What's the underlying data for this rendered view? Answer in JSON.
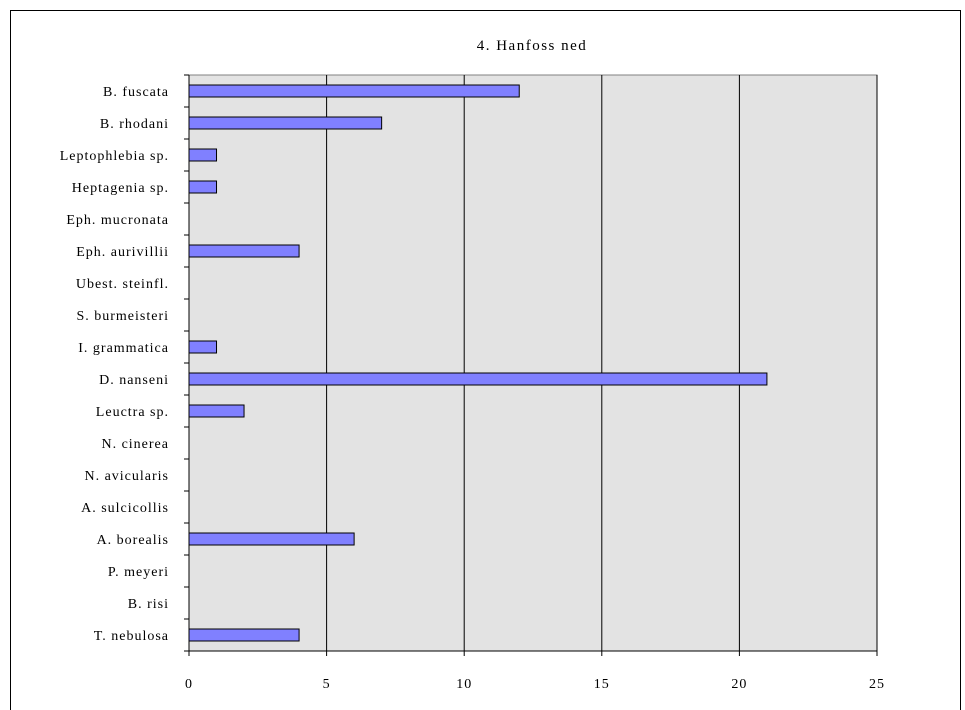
{
  "chart_data": {
    "type": "bar",
    "orientation": "horizontal",
    "title": "4. Hanfoss ned",
    "xlabel": "",
    "ylabel": "",
    "categories": [
      "B. fuscata",
      "B. rhodani",
      "Leptophlebia sp.",
      "Heptagenia sp.",
      "Eph. mucronata",
      "Eph. aurivillii",
      "Ubest. steinfl.",
      "S. burmeisteri",
      "I. grammatica",
      "D. nanseni",
      "Leuctra sp.",
      "N. cinerea",
      "N. avicularis",
      "A. sulcicollis",
      "A. borealis",
      "P. meyeri",
      "B. risi",
      "T. nebulosa"
    ],
    "values": [
      12,
      7,
      1,
      1,
      0,
      4,
      0,
      0,
      1,
      21,
      2,
      0,
      0,
      0,
      6,
      0,
      0,
      4
    ],
    "xlim": [
      0,
      25
    ],
    "xticks": [
      0,
      5,
      10,
      15,
      20,
      25
    ],
    "xtick_labels": [
      "0",
      "5",
      "10",
      "15",
      "20",
      "25"
    ],
    "grid": "vertical major",
    "legend": "none",
    "colors": {
      "bar_fill": "#8080ff",
      "bar_stroke": "#000000",
      "plot_bg": "#e3e3e3",
      "gridline": "#000000"
    }
  }
}
